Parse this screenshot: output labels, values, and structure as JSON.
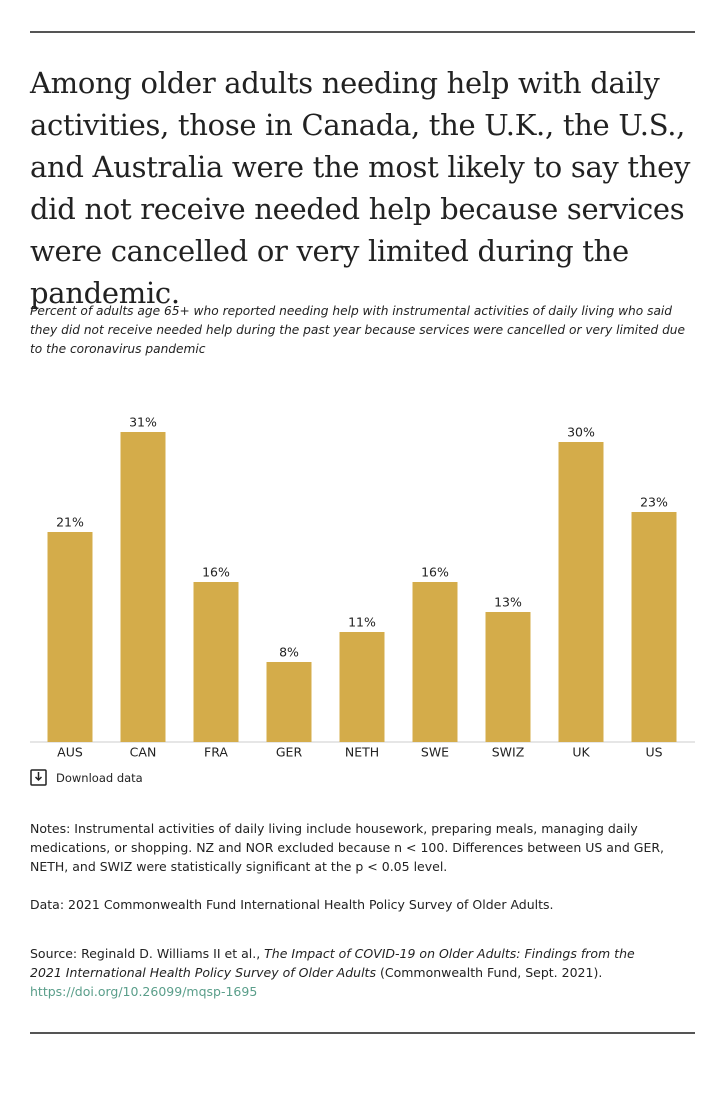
{
  "title": "Among older adults needing help with daily activities, those in Canada, the U.K., the U.S., and Australia were the most likely to say they did not receive needed help because services were cancelled or very limited during the pandemic.",
  "subtitle": "Percent of adults age 65+ who reported needing help with instrumental activities of daily living who said they did not receive needed help during the past year because services were cancelled or very limited due to the coronavirus pandemic",
  "chart_data": {
    "type": "bar",
    "categories": [
      "AUS",
      "CAN",
      "FRA",
      "GER",
      "NETH",
      "SWE",
      "SWIZ",
      "UK",
      "US"
    ],
    "values": [
      21,
      31,
      16,
      8,
      11,
      16,
      13,
      30,
      23
    ],
    "value_labels": [
      "21%",
      "31%",
      "16%",
      "8%",
      "11%",
      "16%",
      "13%",
      "30%",
      "23%"
    ],
    "color": "#d4ac4a"
  },
  "download": "Download data",
  "notes": "Notes: Instrumental activities of daily living include housework, preparing meals, managing daily medications, or shopping. NZ and NOR excluded because n < 100. Differences between US and GER, NETH, and SWIZ were statistically significant at the p < 0.05 level.",
  "data_source": "Data: 2021 Commonwealth Fund International Health Policy Survey of Older Adults.",
  "source": {
    "prefix": "Source: Reginald D. Williams II et al.,",
    "title": "The Impact of COVID-19 on Older Adults: Findings from the 2021 International Health Policy Survey of Older Adults",
    "suffix": "(Commonwealth Fund, Sept. 2021).",
    "link": "https://doi.org/10.26099/mqsp-1695"
  }
}
